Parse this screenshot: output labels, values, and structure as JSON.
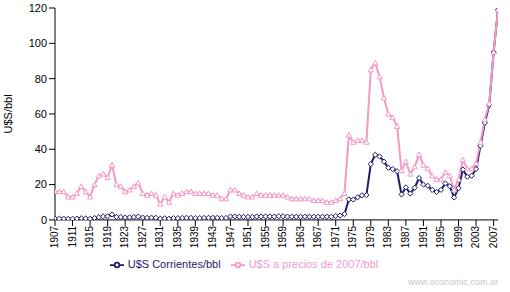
{
  "chart_data": {
    "type": "line",
    "y_label": "U$S/bbl",
    "annotations": [
      "www.economic.com.ar"
    ],
    "grid": false,
    "legend": "bottom",
    "x": [
      1907,
      1908,
      1909,
      1910,
      1911,
      1912,
      1913,
      1914,
      1915,
      1916,
      1917,
      1918,
      1919,
      1920,
      1921,
      1922,
      1923,
      1924,
      1925,
      1926,
      1927,
      1928,
      1929,
      1930,
      1931,
      1932,
      1933,
      1934,
      1935,
      1936,
      1937,
      1938,
      1939,
      1940,
      1941,
      1942,
      1943,
      1944,
      1945,
      1946,
      1947,
      1948,
      1949,
      1950,
      1951,
      1952,
      1953,
      1954,
      1955,
      1956,
      1957,
      1958,
      1959,
      1960,
      1961,
      1962,
      1963,
      1964,
      1965,
      1966,
      1967,
      1968,
      1969,
      1970,
      1971,
      1972,
      1973,
      1974,
      1975,
      1976,
      1977,
      1978,
      1979,
      1980,
      1981,
      1982,
      1983,
      1984,
      1985,
      1986,
      1987,
      1988,
      1989,
      1990,
      1991,
      1992,
      1993,
      1994,
      1995,
      1996,
      1997,
      1998,
      1999,
      2000,
      2001,
      2002,
      2003,
      2004,
      2005,
      2006,
      2007,
      2008
    ],
    "xlim": [
      1907,
      2008
    ],
    "xticks": [
      1907,
      1911,
      1915,
      1919,
      1923,
      1927,
      1931,
      1935,
      1939,
      1943,
      1947,
      1951,
      1955,
      1959,
      1963,
      1967,
      1971,
      1975,
      1979,
      1983,
      1987,
      1991,
      1995,
      1999,
      2003,
      2007
    ],
    "ylim": [
      0,
      120
    ],
    "yticks": [
      0,
      20,
      40,
      60,
      80,
      100,
      120
    ],
    "series": [
      {
        "name": "U$S Corrientes/bbl",
        "color": "#1c1c6b",
        "marker": "diamond",
        "values": [
          0.72,
          0.72,
          0.7,
          0.61,
          0.61,
          0.74,
          0.95,
          0.81,
          0.64,
          1.1,
          1.56,
          1.98,
          2.01,
          3.07,
          1.73,
          1.61,
          1.34,
          1.43,
          1.68,
          1.88,
          1.3,
          1.17,
          1.27,
          1.19,
          0.65,
          0.87,
          0.67,
          1.0,
          0.97,
          1.09,
          1.18,
          1.13,
          1.02,
          1.02,
          1.14,
          1.19,
          1.2,
          1.21,
          1.05,
          1.12,
          1.9,
          1.99,
          1.78,
          1.71,
          1.71,
          1.71,
          1.93,
          1.93,
          1.93,
          1.93,
          1.9,
          2.08,
          2.08,
          1.9,
          1.8,
          1.8,
          1.8,
          1.8,
          1.8,
          1.8,
          1.8,
          1.8,
          1.8,
          1.8,
          2.24,
          2.48,
          3.29,
          11.58,
          11.53,
          12.8,
          13.92,
          14.02,
          31.61,
          36.83,
          35.93,
          32.97,
          29.55,
          28.78,
          27.56,
          14.43,
          18.44,
          14.92,
          18.23,
          23.73,
          20.0,
          19.32,
          16.97,
          15.82,
          17.02,
          20.67,
          19.09,
          12.72,
          17.97,
          28.5,
          24.44,
          25.02,
          28.83,
          42,
          55,
          65,
          95,
          119
        ]
      },
      {
        "name": "U$S a precios de 2007/bbl",
        "color": "#f59ac8",
        "marker": "triangle",
        "values": [
          16,
          16,
          16,
          13,
          13,
          15,
          19,
          16,
          13,
          20,
          25,
          26,
          24,
          31,
          20,
          19,
          16,
          17,
          19,
          21,
          15,
          14,
          15,
          14,
          9,
          13,
          10,
          15,
          14,
          15,
          16,
          16,
          15,
          15,
          15,
          15,
          14,
          14,
          12,
          12,
          17,
          17,
          15,
          14,
          13,
          13,
          15,
          14,
          14,
          14,
          14,
          14,
          14,
          13,
          12,
          12,
          12,
          12,
          12,
          11,
          11,
          11,
          10,
          10,
          11,
          12,
          15,
          48,
          44,
          45,
          45,
          44,
          85,
          89,
          81,
          69,
          60,
          58,
          53,
          28,
          33,
          26,
          30,
          37,
          31,
          29,
          25,
          23,
          23,
          27,
          25,
          17,
          23,
          34,
          29,
          29,
          32,
          44,
          57,
          66,
          95,
          119
        ]
      }
    ]
  }
}
